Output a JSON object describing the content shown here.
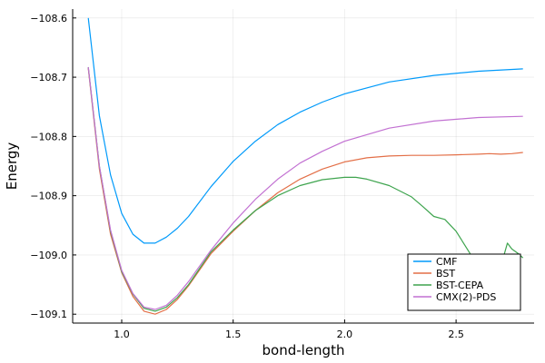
{
  "chart_data": {
    "type": "line",
    "xlabel": "bond-length",
    "ylabel": "Energy",
    "xlim": [
      0.78,
      2.85
    ],
    "ylim": [
      -109.115,
      -108.585
    ],
    "xticks": [
      1.0,
      1.5,
      2.0,
      2.5
    ],
    "xtick_labels": [
      "1.0",
      "1.5",
      "2.0",
      "2.5"
    ],
    "yticks": [
      -109.1,
      -109.0,
      -108.9,
      -108.8,
      -108.7,
      -108.6
    ],
    "ytick_labels": [
      "−109.1",
      "−109.0",
      "−108.9",
      "−108.8",
      "−108.7",
      "−108.6"
    ],
    "grid": true,
    "legend_position": "bottom-right",
    "series": [
      {
        "name": "CMF",
        "color": "#009AFA",
        "x": [
          0.85,
          0.9,
          0.95,
          1.0,
          1.05,
          1.1,
          1.15,
          1.2,
          1.25,
          1.3,
          1.4,
          1.5,
          1.6,
          1.7,
          1.8,
          1.9,
          2.0,
          2.2,
          2.4,
          2.6,
          2.8
        ],
        "y": [
          -108.6,
          -108.765,
          -108.865,
          -108.93,
          -108.965,
          -108.98,
          -108.98,
          -108.97,
          -108.955,
          -108.935,
          -108.885,
          -108.842,
          -108.808,
          -108.78,
          -108.759,
          -108.742,
          -108.728,
          -108.708,
          -108.697,
          -108.69,
          -108.686
        ]
      },
      {
        "name": "BST",
        "color": "#E36F47",
        "x": [
          0.85,
          0.9,
          0.95,
          1.0,
          1.05,
          1.1,
          1.15,
          1.2,
          1.25,
          1.3,
          1.4,
          1.5,
          1.6,
          1.7,
          1.8,
          1.9,
          2.0,
          2.1,
          2.2,
          2.3,
          2.4,
          2.5,
          2.6,
          2.65,
          2.7,
          2.75,
          2.8
        ],
        "y": [
          -108.685,
          -108.855,
          -108.965,
          -109.03,
          -109.07,
          -109.095,
          -109.1,
          -109.092,
          -109.075,
          -109.052,
          -108.998,
          -108.96,
          -108.925,
          -108.895,
          -108.872,
          -108.855,
          -108.843,
          -108.836,
          -108.833,
          -108.832,
          -108.832,
          -108.831,
          -108.83,
          -108.829,
          -108.83,
          -108.829,
          -108.827
        ]
      },
      {
        "name": "BST-CEPA",
        "color": "#3EA44E",
        "x": [
          0.85,
          0.9,
          0.95,
          1.0,
          1.05,
          1.1,
          1.15,
          1.2,
          1.25,
          1.3,
          1.4,
          1.5,
          1.6,
          1.7,
          1.8,
          1.9,
          2.0,
          2.05,
          2.1,
          2.2,
          2.3,
          2.35,
          2.4,
          2.45,
          2.5,
          2.55,
          2.6,
          2.65,
          2.7,
          2.73,
          2.75,
          2.78,
          2.8
        ],
        "y": [
          -108.683,
          -108.85,
          -108.96,
          -109.028,
          -109.066,
          -109.09,
          -109.095,
          -109.088,
          -109.072,
          -109.05,
          -108.995,
          -108.958,
          -108.925,
          -108.9,
          -108.883,
          -108.873,
          -108.869,
          -108.869,
          -108.872,
          -108.883,
          -108.902,
          -108.918,
          -108.935,
          -108.94,
          -108.96,
          -108.99,
          -109.02,
          -109.06,
          -109.02,
          -108.98,
          -108.99,
          -108.998,
          -109.005
        ]
      },
      {
        "name": "CMX(2)-PDS",
        "color": "#C271D2",
        "x": [
          0.85,
          0.9,
          0.95,
          1.0,
          1.05,
          1.1,
          1.15,
          1.2,
          1.25,
          1.3,
          1.4,
          1.5,
          1.6,
          1.7,
          1.8,
          1.9,
          2.0,
          2.2,
          2.4,
          2.6,
          2.8
        ],
        "y": [
          -108.683,
          -108.85,
          -108.958,
          -109.026,
          -109.065,
          -109.088,
          -109.092,
          -109.085,
          -109.068,
          -109.045,
          -108.992,
          -108.946,
          -108.906,
          -108.872,
          -108.845,
          -108.825,
          -108.808,
          -108.786,
          -108.774,
          -108.768,
          -108.766
        ]
      }
    ]
  }
}
